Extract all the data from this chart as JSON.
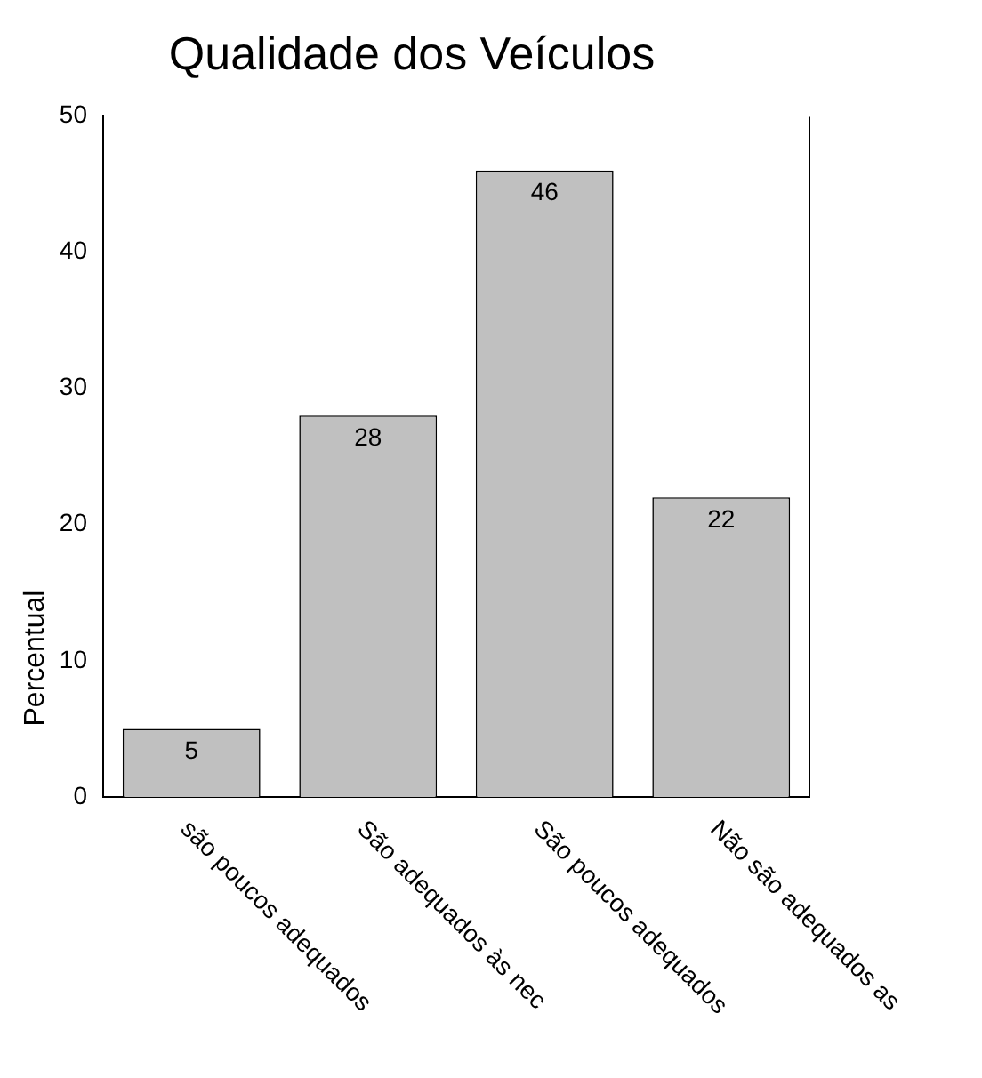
{
  "chart_data": {
    "type": "bar",
    "title": "Qualidade dos Veículos",
    "ylabel": "Percentual",
    "categories": [
      "são poucos adequados",
      "São adequados às nec",
      "São poucos adequados",
      "Não são adequados as"
    ],
    "values": [
      5,
      28,
      46,
      22
    ],
    "color": "#c0c0c0",
    "data_labels": true,
    "ylim": [
      0,
      50
    ],
    "yticks": [
      0,
      10,
      20,
      30,
      40,
      50
    ],
    "grid": false,
    "legend": false
  }
}
